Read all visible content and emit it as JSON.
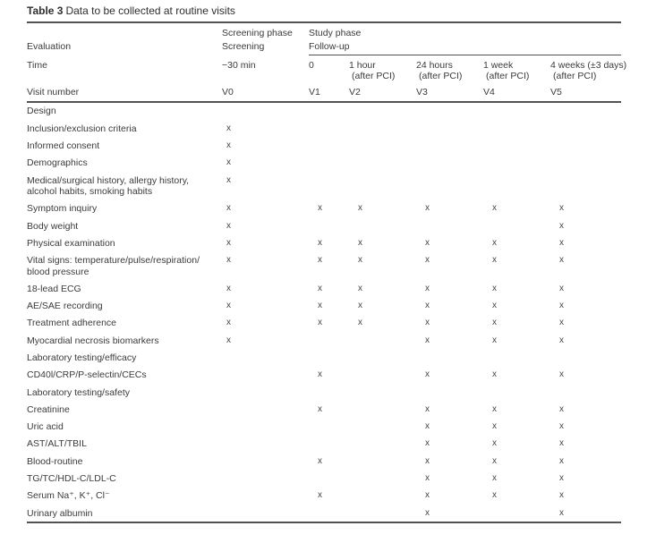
{
  "title": {
    "number": "Table 3",
    "caption": "Data to be collected at routine visits"
  },
  "header": {
    "screening_phase": "Screening phase",
    "study_phase": "Study phase",
    "evaluation": "Evaluation",
    "screening": "Screening",
    "follow_up": "Follow-up",
    "time_label": "Time",
    "time": [
      {
        "line1": "−30 min",
        "line2": ""
      },
      {
        "line1": "0",
        "line2": ""
      },
      {
        "line1": "1 hour",
        "line2": "(after PCI)"
      },
      {
        "line1": "24 hours",
        "line2": "(after PCI)"
      },
      {
        "line1": "1 week",
        "line2": "(after PCI)"
      },
      {
        "line1": "4 weeks (±3 days)",
        "line2": "(after PCI)"
      }
    ],
    "visit_label": "Visit number",
    "visits": [
      "V0",
      "V1",
      "V2",
      "V3",
      "V4",
      "V5"
    ]
  },
  "rows": [
    {
      "label": "Design",
      "marks": [
        "",
        "",
        "",
        "",
        "",
        ""
      ]
    },
    {
      "label": "Inclusion/exclusion criteria",
      "marks": [
        "x",
        "",
        "",
        "",
        "",
        ""
      ]
    },
    {
      "label": "Informed consent",
      "marks": [
        "x",
        "",
        "",
        "",
        "",
        ""
      ]
    },
    {
      "label": "Demographics",
      "marks": [
        "x",
        "",
        "",
        "",
        "",
        ""
      ]
    },
    {
      "label": "Medical/surgical history, allergy history, alcohol habits, smoking habits",
      "marks": [
        "x",
        "",
        "",
        "",
        "",
        ""
      ]
    },
    {
      "label": "Symptom inquiry",
      "marks": [
        "x",
        "x",
        "x",
        "x",
        "x",
        "x"
      ]
    },
    {
      "label": "Body weight",
      "marks": [
        "x",
        "",
        "",
        "",
        "",
        "x"
      ]
    },
    {
      "label": "Physical examination",
      "marks": [
        "x",
        "x",
        "x",
        "x",
        "x",
        "x"
      ]
    },
    {
      "label": "Vital signs: temperature/pulse/respiration/ blood pressure",
      "marks": [
        "x",
        "x",
        "x",
        "x",
        "x",
        "x"
      ]
    },
    {
      "label": "18-lead ECG",
      "marks": [
        "x",
        "x",
        "x",
        "x",
        "x",
        "x"
      ]
    },
    {
      "label": "AE/SAE recording",
      "marks": [
        "x",
        "x",
        "x",
        "x",
        "x",
        "x"
      ]
    },
    {
      "label": "Treatment adherence",
      "marks": [
        "x",
        "x",
        "x",
        "x",
        "x",
        "x"
      ]
    },
    {
      "label": "Myocardial necrosis biomarkers",
      "marks": [
        "x",
        "",
        "",
        "x",
        "x",
        "x"
      ]
    },
    {
      "label": "Laboratory testing/efficacy",
      "marks": [
        "",
        "",
        "",
        "",
        "",
        ""
      ]
    },
    {
      "label": "CD40l/CRP/P-selectin/CECs",
      "marks": [
        "",
        "x",
        "",
        "x",
        "x",
        "x"
      ]
    },
    {
      "label": "Laboratory testing/safety",
      "marks": [
        "",
        "",
        "",
        "",
        "",
        ""
      ]
    },
    {
      "label": "Creatinine",
      "marks": [
        "",
        "x",
        "",
        "x",
        "x",
        "x"
      ]
    },
    {
      "label": "Uric acid",
      "marks": [
        "",
        "",
        "",
        "x",
        "x",
        "x"
      ]
    },
    {
      "label": "AST/ALT/TBIL",
      "marks": [
        "",
        "",
        "",
        "x",
        "x",
        "x"
      ]
    },
    {
      "label": "Blood-routine",
      "marks": [
        "",
        "x",
        "",
        "x",
        "x",
        "x"
      ]
    },
    {
      "label": "TG/TC/HDL-C/LDL-C",
      "marks": [
        "",
        "",
        "",
        "x",
        "x",
        "x"
      ]
    },
    {
      "label": "Serum Na⁺, K⁺, Cl⁻",
      "marks": [
        "",
        "x",
        "",
        "x",
        "x",
        "x"
      ]
    },
    {
      "label": "Urinary albumin",
      "marks": [
        "",
        "",
        "",
        "x",
        "",
        "x"
      ]
    }
  ]
}
